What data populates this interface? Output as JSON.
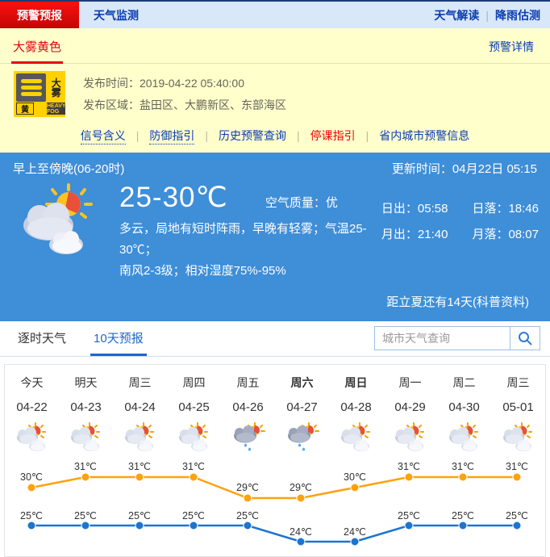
{
  "top_nav": {
    "tab_warning": "预警预报",
    "tab_monitor": "天气监测",
    "link_interpretation": "天气解读",
    "link_rain": "降雨估测"
  },
  "warning": {
    "tab": "大雾黄色",
    "detail_link": "预警详情",
    "icon": {
      "title": "大雾",
      "level": "黄",
      "en": "HEAVY FOG"
    },
    "publish_time_label": "发布时间：",
    "publish_time": "2019-04-22 05:40:00",
    "area_label": "发布区域：",
    "area": "盐田区、大鹏新区、东部海区",
    "links": [
      {
        "label": "信号含义",
        "style": "dotted"
      },
      {
        "label": "防御指引",
        "style": "dotted"
      },
      {
        "label": "历史预警查询",
        "style": "plain"
      },
      {
        "label": "停课指引",
        "style": "red"
      },
      {
        "label": "省内城市预警信息",
        "style": "plain"
      }
    ]
  },
  "current": {
    "period": "早上至傍晚(06-20时)",
    "update_time": "更新时间：04月22日 05:15",
    "temp_range": "25-30℃",
    "air_quality_label": "空气质量：",
    "air_quality": "优",
    "desc_line1": "多云，局地有短时阵雨，早晚有轻雾；气温25-30℃；",
    "desc_line2": "南风2-3级；相对湿度75%-95%",
    "sun_moon": [
      {
        "label": "日出：",
        "value": "05:58"
      },
      {
        "label": "日落：",
        "value": "18:46"
      },
      {
        "label": "月出：",
        "value": "21:40"
      },
      {
        "label": "月落：",
        "value": "08:07"
      }
    ],
    "solar_term": "距立夏还有14天(科普资料)"
  },
  "forecast_tabs": {
    "hourly": "逐时天气",
    "ten_day": "10天预报"
  },
  "search": {
    "placeholder": "城市天气查询",
    "icon": "search-icon"
  },
  "colors": {
    "accent_red": "#e60012",
    "link_blue": "#0b3cb0",
    "panel_blue": "#3e8ed8",
    "warning_yellow": "#ffffcc",
    "fog_yellow": "#ffd100",
    "high_line": "#ffa20d",
    "low_line": "#1b75d1"
  },
  "chart_data": {
    "type": "line",
    "title": "10天预报",
    "categories": [
      "今天",
      "明天",
      "周三",
      "周四",
      "周五",
      "周六",
      "周日",
      "周一",
      "周二",
      "周三"
    ],
    "bold_indexes": [
      5,
      6
    ],
    "dates": [
      "04-22",
      "04-23",
      "04-24",
      "04-25",
      "04-26",
      "04-27",
      "04-28",
      "04-29",
      "04-30",
      "05-01"
    ],
    "icons": [
      "partly-cloudy-icon",
      "partly-cloudy-icon",
      "partly-cloudy-icon",
      "partly-cloudy-icon",
      "shower-rain-icon",
      "shower-rain-icon",
      "partly-cloudy-icon",
      "partly-cloudy-icon",
      "partly-cloudy-icon",
      "partly-cloudy-icon"
    ],
    "unit": "℃",
    "series": [
      {
        "name": "high",
        "color": "#ffa20d",
        "values": [
          30,
          31,
          31,
          31,
          29,
          29,
          30,
          31,
          31,
          31
        ]
      },
      {
        "name": "low",
        "color": "#1b75d1",
        "values": [
          25,
          25,
          25,
          25,
          25,
          24,
          24,
          25,
          25,
          25
        ]
      }
    ],
    "ylim_high": [
      29,
      31
    ],
    "ylim_low": [
      24,
      25
    ],
    "grid": false,
    "legend": "none"
  }
}
